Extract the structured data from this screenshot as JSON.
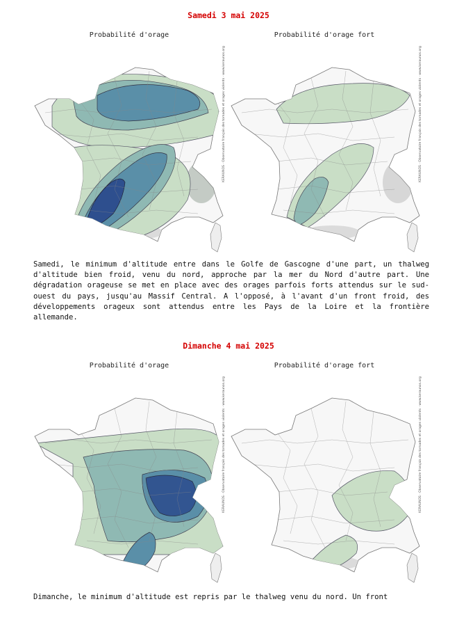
{
  "colors": {
    "title_red": "#d40000",
    "level_light": "#c9dec6",
    "level_mid": "#8fb9b3",
    "level_strong": "#5a8fa8",
    "level_high": "#2e4f8e",
    "relief": "#9aa79c"
  },
  "days": [
    {
      "title": "Samedi 3 mai 2025",
      "maps": [
        {
          "title": "Probabilité d'orage",
          "credit": "KERAUNOS · Observatoire français des tornades et orages violents · www.keraunos.org"
        },
        {
          "title": "Probabilité d'orage fort",
          "credit": "KERAUNOS · Observatoire français des tornades et orages violents · www.keraunos.org"
        }
      ],
      "text": "Samedi, le minimum d'altitude entre dans le Golfe de Gascogne d'une part, un thalweg d'altitude bien froid, venu du nord, approche par la mer du Nord d'autre part. Une dégradation orageuse se met en place avec des orages parfois forts attendus sur le sud-ouest du pays, jusqu'au Massif Central. A l'opposé, à l'avant d'un front froid, des développements orageux sont attendus entre les Pays de la Loire et la frontière allemande."
    },
    {
      "title": "Dimanche 4 mai 2025",
      "maps": [
        {
          "title": "Probabilité d'orage",
          "credit": "KERAUNOS · Observatoire français des tornades et orages violents · www.keraunos.org"
        },
        {
          "title": "Probabilité d'orage fort",
          "credit": "KERAUNOS · Observatoire français des tornades et orages violents · www.keraunos.org"
        }
      ],
      "text": "Dimanche, le minimum d'altitude est repris par le thalweg venu du nord. Un front"
    }
  ]
}
